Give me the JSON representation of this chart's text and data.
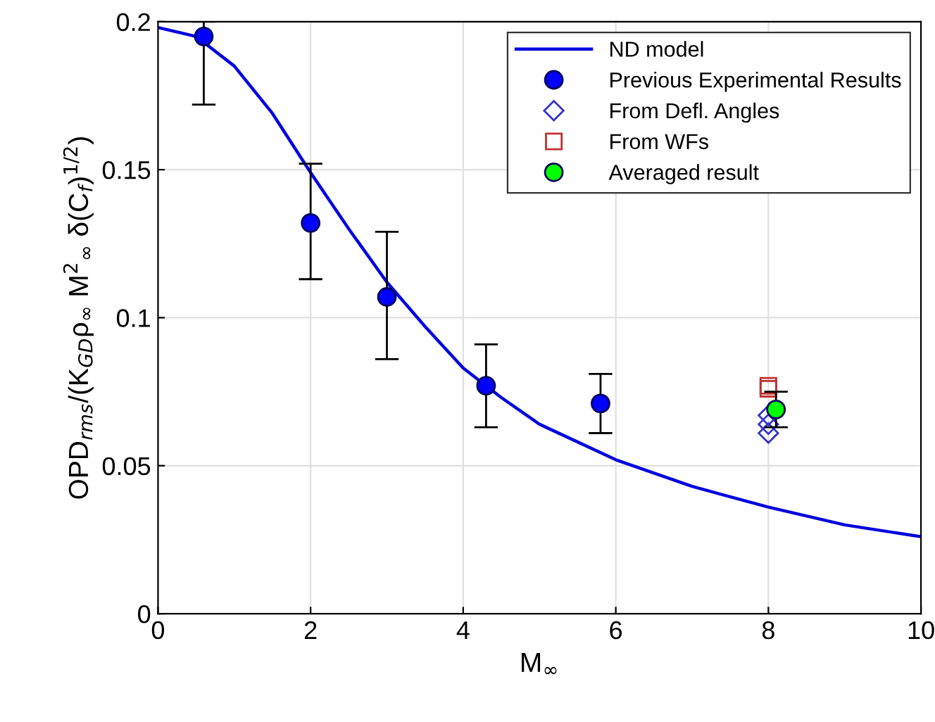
{
  "chart_data": {
    "type": "line",
    "xlabel": "M$_{∞}$",
    "ylabel": "OPD$_{rms}$/(K$_{GD}$ρ$_{∞}$ M$^{2}$$_{∞}$ δ(C$_{f}$)$^{1/2}$)",
    "xlim": [
      0,
      10
    ],
    "ylim": [
      0,
      0.2
    ],
    "xticks": [
      0,
      2,
      4,
      6,
      8,
      10
    ],
    "yticks": [
      0,
      0.05,
      0.1,
      0.15,
      0.2
    ],
    "grid": true,
    "legend": "top right",
    "series": [
      {
        "name": "ND model",
        "color": "#0000e0",
        "marker": "none",
        "line_style": "solid",
        "x": [
          0,
          0.5,
          1,
          1.5,
          2,
          2.5,
          3,
          3.5,
          4,
          4.5,
          5,
          6,
          7,
          8,
          9,
          10
        ],
        "values": [
          0.198,
          0.195,
          0.185,
          0.169,
          0.149,
          0.13,
          0.112,
          0.097,
          0.083,
          0.073,
          0.064,
          0.052,
          0.043,
          0.036,
          0.03,
          0.026
        ]
      },
      {
        "name": "Previous Experimental Results",
        "type": "scatter",
        "color": "#0000ff",
        "marker": "circle",
        "x": [
          0.6,
          2,
          3,
          4.3,
          5.8
        ],
        "values": [
          0.195,
          0.132,
          0.107,
          0.077,
          0.071
        ],
        "errors": [
          [
            0.172,
            0.2
          ],
          [
            0.113,
            0.152
          ],
          [
            0.086,
            0.129
          ],
          [
            0.063,
            0.091
          ],
          [
            0.061,
            0.081
          ]
        ]
      },
      {
        "name": "From Defl. Angles",
        "type": "scatter",
        "color": "#3333cc",
        "marker": "diamond",
        "x": [
          8,
          8,
          8
        ],
        "values": [
          0.061,
          0.064,
          0.067
        ]
      },
      {
        "name": "From WFs",
        "type": "scatter",
        "color": "#c03030",
        "marker": "square",
        "x": [
          8,
          8
        ],
        "values": [
          0.076,
          0.077
        ]
      },
      {
        "name": "Averaged result",
        "type": "scatter",
        "color": "#00ff00",
        "marker": "circle",
        "x": [
          8.1
        ],
        "values": [
          0.069
        ],
        "errors": [
          [
            0.063,
            0.075
          ]
        ]
      }
    ]
  }
}
